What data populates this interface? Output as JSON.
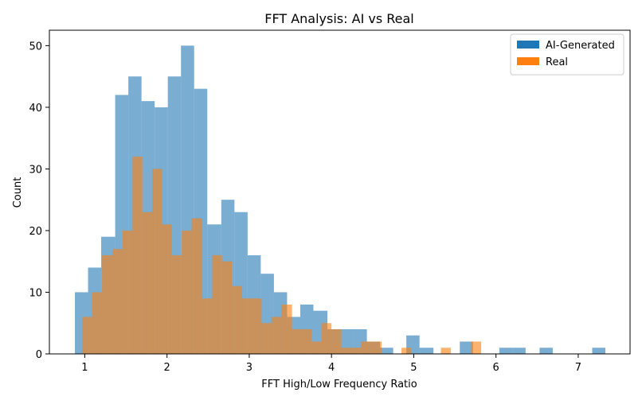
{
  "chart_data": {
    "type": "histogram",
    "title": "FFT Analysis: AI vs Real",
    "xlabel": "FFT High/Low Frequency Ratio",
    "ylabel": "Count",
    "xlim": [
      0.57,
      7.63
    ],
    "ylim": [
      0,
      52.5
    ],
    "xticks": [
      1,
      2,
      3,
      4,
      5,
      6,
      7
    ],
    "yticks": [
      0,
      10,
      20,
      30,
      40,
      50
    ],
    "grid": false,
    "legend_position": "top-right",
    "overlap_color": "#c59062",
    "series": [
      {
        "name": "AI-Generated",
        "color": "#1f77b4",
        "opacity": 0.6,
        "bins": [
          {
            "x0": 0.88,
            "x1": 1.04,
            "count": 10
          },
          {
            "x0": 1.04,
            "x1": 1.2,
            "count": 14
          },
          {
            "x0": 1.2,
            "x1": 1.37,
            "count": 19
          },
          {
            "x0": 1.37,
            "x1": 1.53,
            "count": 42
          },
          {
            "x0": 1.53,
            "x1": 1.69,
            "count": 45
          },
          {
            "x0": 1.69,
            "x1": 1.85,
            "count": 41
          },
          {
            "x0": 1.85,
            "x1": 2.01,
            "count": 40
          },
          {
            "x0": 2.01,
            "x1": 2.17,
            "count": 45
          },
          {
            "x0": 2.17,
            "x1": 2.33,
            "count": 50
          },
          {
            "x0": 2.33,
            "x1": 2.49,
            "count": 43
          },
          {
            "x0": 2.49,
            "x1": 2.66,
            "count": 21
          },
          {
            "x0": 2.66,
            "x1": 2.82,
            "count": 25
          },
          {
            "x0": 2.82,
            "x1": 2.98,
            "count": 23
          },
          {
            "x0": 2.98,
            "x1": 3.14,
            "count": 16
          },
          {
            "x0": 3.14,
            "x1": 3.3,
            "count": 13
          },
          {
            "x0": 3.3,
            "x1": 3.46,
            "count": 10
          },
          {
            "x0": 3.46,
            "x1": 3.62,
            "count": 6
          },
          {
            "x0": 3.62,
            "x1": 3.78,
            "count": 8
          },
          {
            "x0": 3.78,
            "x1": 3.95,
            "count": 7
          },
          {
            "x0": 3.95,
            "x1": 4.11,
            "count": 4
          },
          {
            "x0": 4.11,
            "x1": 4.27,
            "count": 4
          },
          {
            "x0": 4.27,
            "x1": 4.43,
            "count": 4
          },
          {
            "x0": 4.43,
            "x1": 4.59,
            "count": 2
          },
          {
            "x0": 4.59,
            "x1": 4.75,
            "count": 1
          },
          {
            "x0": 4.75,
            "x1": 4.91,
            "count": 0
          },
          {
            "x0": 4.91,
            "x1": 5.07,
            "count": 3
          },
          {
            "x0": 5.07,
            "x1": 5.24,
            "count": 1
          },
          {
            "x0": 5.24,
            "x1": 5.4,
            "count": 0
          },
          {
            "x0": 5.4,
            "x1": 5.56,
            "count": 0
          },
          {
            "x0": 5.56,
            "x1": 5.72,
            "count": 2
          },
          {
            "x0": 5.72,
            "x1": 5.88,
            "count": 0
          },
          {
            "x0": 5.88,
            "x1": 6.04,
            "count": 0
          },
          {
            "x0": 6.04,
            "x1": 6.2,
            "count": 1
          },
          {
            "x0": 6.2,
            "x1": 6.36,
            "count": 1
          },
          {
            "x0": 6.36,
            "x1": 6.53,
            "count": 0
          },
          {
            "x0": 6.53,
            "x1": 6.69,
            "count": 1
          },
          {
            "x0": 6.69,
            "x1": 6.85,
            "count": 0
          },
          {
            "x0": 6.85,
            "x1": 7.01,
            "count": 0
          },
          {
            "x0": 7.01,
            "x1": 7.17,
            "count": 0
          },
          {
            "x0": 7.17,
            "x1": 7.33,
            "count": 1
          }
        ]
      },
      {
        "name": "Real",
        "color": "#ff7f0e",
        "opacity": 0.6,
        "bins": [
          {
            "x0": 0.97,
            "x1": 1.09,
            "count": 6
          },
          {
            "x0": 1.09,
            "x1": 1.21,
            "count": 10
          },
          {
            "x0": 1.21,
            "x1": 1.34,
            "count": 16
          },
          {
            "x0": 1.34,
            "x1": 1.46,
            "count": 17
          },
          {
            "x0": 1.46,
            "x1": 1.58,
            "count": 20
          },
          {
            "x0": 1.58,
            "x1": 1.7,
            "count": 32
          },
          {
            "x0": 1.7,
            "x1": 1.82,
            "count": 23
          },
          {
            "x0": 1.82,
            "x1": 1.94,
            "count": 30
          },
          {
            "x0": 1.94,
            "x1": 2.06,
            "count": 21
          },
          {
            "x0": 2.06,
            "x1": 2.18,
            "count": 16
          },
          {
            "x0": 2.18,
            "x1": 2.3,
            "count": 20
          },
          {
            "x0": 2.3,
            "x1": 2.43,
            "count": 22
          },
          {
            "x0": 2.43,
            "x1": 2.55,
            "count": 9
          },
          {
            "x0": 2.55,
            "x1": 2.67,
            "count": 16
          },
          {
            "x0": 2.67,
            "x1": 2.79,
            "count": 15
          },
          {
            "x0": 2.79,
            "x1": 2.91,
            "count": 11
          },
          {
            "x0": 2.91,
            "x1": 3.03,
            "count": 9
          },
          {
            "x0": 3.03,
            "x1": 3.15,
            "count": 9
          },
          {
            "x0": 3.15,
            "x1": 3.27,
            "count": 5
          },
          {
            "x0": 3.27,
            "x1": 3.39,
            "count": 6
          },
          {
            "x0": 3.39,
            "x1": 3.52,
            "count": 8
          },
          {
            "x0": 3.52,
            "x1": 3.64,
            "count": 4
          },
          {
            "x0": 3.64,
            "x1": 3.76,
            "count": 4
          },
          {
            "x0": 3.76,
            "x1": 3.88,
            "count": 2
          },
          {
            "x0": 3.88,
            "x1": 4.0,
            "count": 5
          },
          {
            "x0": 4.0,
            "x1": 4.12,
            "count": 4
          },
          {
            "x0": 4.12,
            "x1": 4.24,
            "count": 1
          },
          {
            "x0": 4.24,
            "x1": 4.36,
            "count": 1
          },
          {
            "x0": 4.36,
            "x1": 4.48,
            "count": 2
          },
          {
            "x0": 4.48,
            "x1": 4.61,
            "count": 2
          },
          {
            "x0": 4.61,
            "x1": 4.73,
            "count": 0
          },
          {
            "x0": 4.73,
            "x1": 4.85,
            "count": 0
          },
          {
            "x0": 4.85,
            "x1": 4.97,
            "count": 1
          },
          {
            "x0": 4.97,
            "x1": 5.09,
            "count": 0
          },
          {
            "x0": 5.09,
            "x1": 5.21,
            "count": 0
          },
          {
            "x0": 5.21,
            "x1": 5.33,
            "count": 0
          },
          {
            "x0": 5.33,
            "x1": 5.45,
            "count": 1
          },
          {
            "x0": 5.45,
            "x1": 5.57,
            "count": 0
          },
          {
            "x0": 5.57,
            "x1": 5.7,
            "count": 0
          },
          {
            "x0": 5.7,
            "x1": 5.82,
            "count": 2
          }
        ]
      }
    ]
  }
}
